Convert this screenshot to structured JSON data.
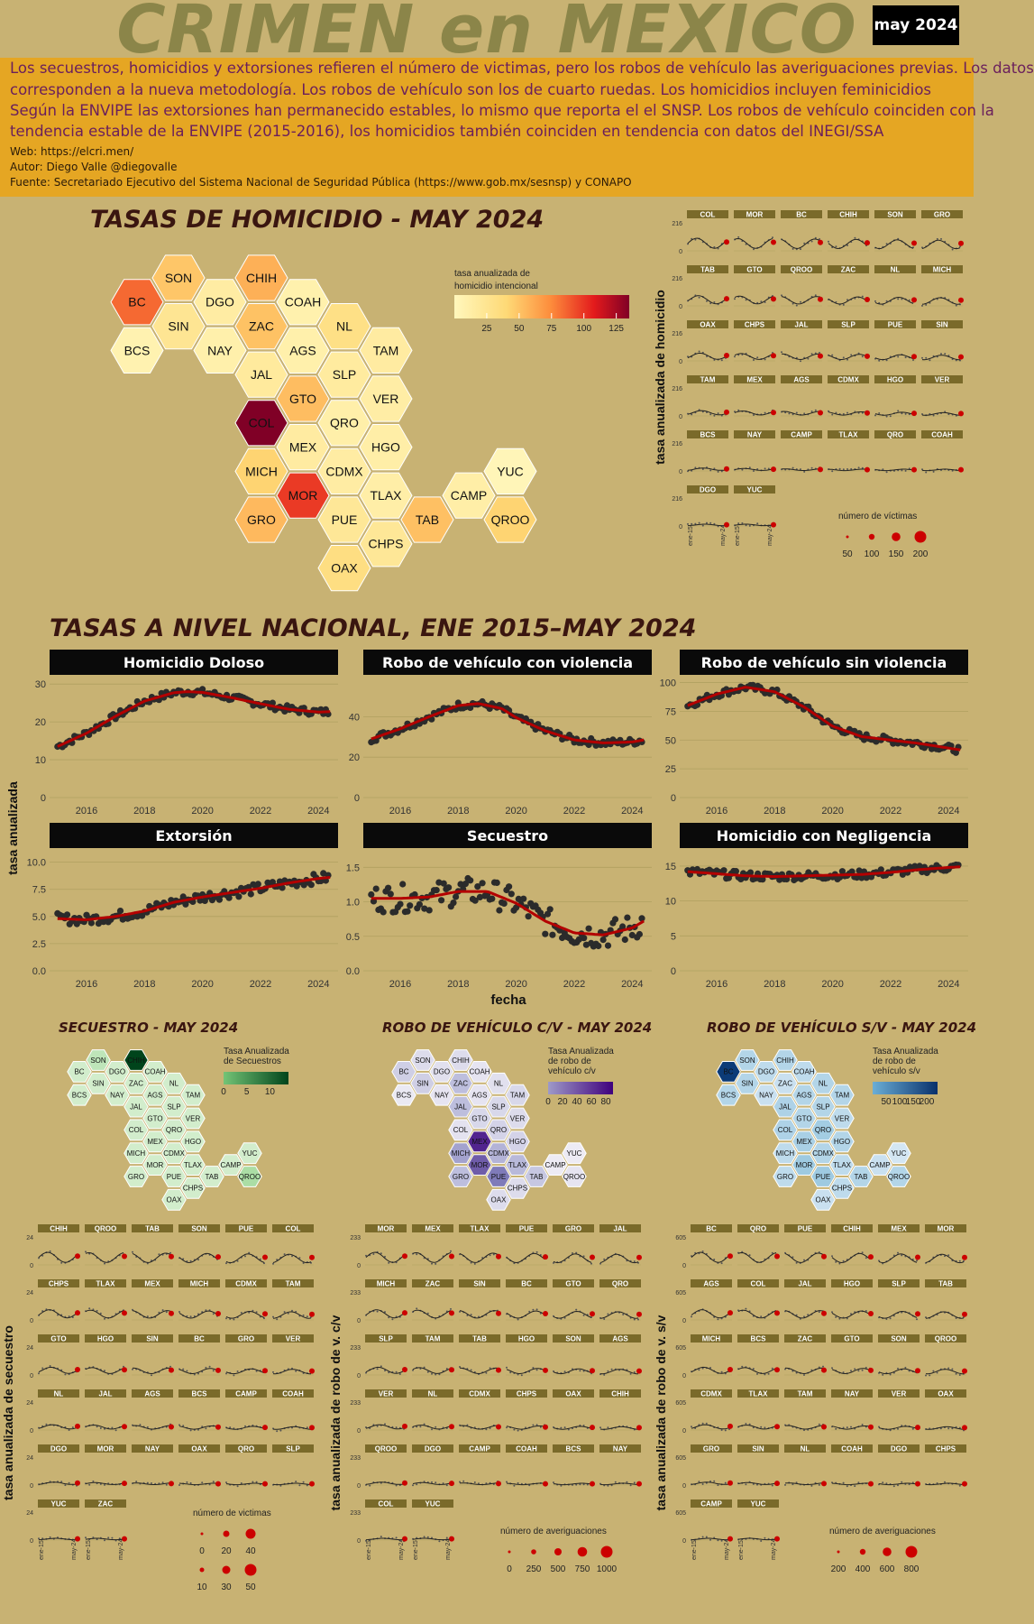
{
  "header": {
    "title": "CRIMEN en MEXICO",
    "date_badge": "may 2024"
  },
  "info": {
    "description_lines": [
      "Los secuestros, homicidios y extorsiones refieren el número de victimas, pero los robos de vehículo las averiguaciones previas. Los datos",
      "corresponden a la nueva metodología. Los robos de vehículo son los de cuarto ruedas. Los homicidios incluyen feminicidios",
      "Según la ENVIPE las extorsiones han permanecido estables, lo mismo que reporta el el SNSP. Los robos de vehículo coinciden con la",
      "tendencia estable de la ENVIPE (2015-2016), los homicidios también coinciden en tendencia con datos del INEGI/SSA"
    ],
    "web": "Web: https://elcri.men/",
    "author": "Autor: Diego Valle @diegovalle",
    "source": "Fuente: Secretariado Ejecutivo del Sistema Nacional de Seguridad Pública (https://www.gob.mx/sesnsp) y CONAPO"
  },
  "colors": {
    "background": "#C8B273",
    "info_band": "#E5A623",
    "trend_line": "#B30000",
    "dot": "#2b2b2b",
    "strip": "#7A6A2A",
    "panel_header": "#0A0A0A"
  },
  "icons": {
    "map": "hexagon-tile-map",
    "dots": "circle-markers"
  },
  "chart_data": [
    {
      "id": "homicide_map",
      "type": "heatmap",
      "subtype": "hex-tile-map",
      "title": "TASAS DE HOMICIDIO - MAY 2024",
      "legend_title": "tasa anualizada de homicidio intencional",
      "legend_ticks": [
        25,
        50,
        75,
        100,
        125
      ],
      "color_scale": [
        "#FFF7BC",
        "#FED976",
        "#FD8D3C",
        "#E31A1C",
        "#800026"
      ],
      "domain": [
        0,
        135
      ],
      "states": [
        {
          "code": "SON",
          "value": 42
        },
        {
          "code": "CHIH",
          "value": 52
        },
        {
          "code": "BC",
          "value": 78
        },
        {
          "code": "DGO",
          "value": 12
        },
        {
          "code": "COAH",
          "value": 7
        },
        {
          "code": "SIN",
          "value": 20
        },
        {
          "code": "ZAC",
          "value": 44
        },
        {
          "code": "NL",
          "value": 26
        },
        {
          "code": "BCS",
          "value": 6
        },
        {
          "code": "NAY",
          "value": 8
        },
        {
          "code": "AGS",
          "value": 8
        },
        {
          "code": "TAM",
          "value": 13
        },
        {
          "code": "JAL",
          "value": 15
        },
        {
          "code": "SLP",
          "value": 14
        },
        {
          "code": "GTO",
          "value": 46
        },
        {
          "code": "VER",
          "value": 11
        },
        {
          "code": "COL",
          "value": 135
        },
        {
          "code": "QRO",
          "value": 9
        },
        {
          "code": "MEX",
          "value": 13
        },
        {
          "code": "HGO",
          "value": 10
        },
        {
          "code": "MICH",
          "value": 36
        },
        {
          "code": "CDMX",
          "value": 12
        },
        {
          "code": "YUC",
          "value": 2
        },
        {
          "code": "MOR",
          "value": 92
        },
        {
          "code": "TLAX",
          "value": 10
        },
        {
          "code": "CAMP",
          "value": 10
        },
        {
          "code": "GRO",
          "value": 48
        },
        {
          "code": "PUE",
          "value": 18
        },
        {
          "code": "TAB",
          "value": 45
        },
        {
          "code": "QROO",
          "value": 36
        },
        {
          "code": "CHPS",
          "value": 18
        },
        {
          "code": "OAX",
          "value": 28
        }
      ]
    },
    {
      "id": "homicide_small_multiples",
      "type": "scatter",
      "subtype": "small-multiples",
      "ylabel": "tasa anualizada de homicidio",
      "ymax": 216,
      "states": [
        "COL",
        "MOR",
        "BC",
        "CHIH",
        "SON",
        "GRO",
        "TAB",
        "GTO",
        "QROO",
        "ZAC",
        "NL",
        "MICH",
        "OAX",
        "CHPS",
        "JAL",
        "SLP",
        "PUE",
        "SIN",
        "TAM",
        "MEX",
        "AGS",
        "CDMX",
        "HGO",
        "VER",
        "BCS",
        "NAY",
        "CAMP",
        "TLAX",
        "QRO",
        "COAH",
        "DGO",
        "YUC"
      ],
      "x_tick_labels": [
        "ene-15",
        "may-24"
      ],
      "legend_title": "número de víctimas",
      "legend_values": [
        50,
        100,
        150,
        200
      ]
    },
    {
      "id": "national",
      "type": "scatter",
      "title": "TASAS A NIVEL NACIONAL, ENE 2015–MAY 2024",
      "xlabel": "fecha",
      "ylabel": "tasa anualizada",
      "x_ticks": [
        2016,
        2018,
        2020,
        2022,
        2024
      ],
      "panels": [
        {
          "name": "Homicidio Doloso",
          "y_ticks": [
            0,
            10,
            20,
            30
          ],
          "ylim": [
            0,
            31
          ],
          "trend": [
            [
              2015.0,
              13.5
            ],
            [
              2016.0,
              17.0
            ],
            [
              2017.0,
              21.5
            ],
            [
              2018.0,
              25.5
            ],
            [
              2019.0,
              27.7
            ],
            [
              2019.5,
              28.0
            ],
            [
              2020.0,
              27.8
            ],
            [
              2021.0,
              26.4
            ],
            [
              2022.0,
              24.8
            ],
            [
              2023.0,
              23.3
            ],
            [
              2024.0,
              22.6
            ],
            [
              2024.4,
              22.7
            ]
          ]
        },
        {
          "name": "Robo de vehículo con violencia",
          "y_ticks": [
            0,
            20,
            40
          ],
          "ylim": [
            0,
            58
          ],
          "trend": [
            [
              2015.0,
              29
            ],
            [
              2016.0,
              34
            ],
            [
              2017.0,
              40
            ],
            [
              2018.0,
              45.5
            ],
            [
              2018.7,
              46.5
            ],
            [
              2019.5,
              44
            ],
            [
              2020.0,
              39.5
            ],
            [
              2021.0,
              33
            ],
            [
              2022.0,
              28.5
            ],
            [
              2023.0,
              27
            ],
            [
              2024.0,
              27.5
            ],
            [
              2024.4,
              28.5
            ]
          ]
        },
        {
          "name": "Robo de vehículo sin violencia",
          "y_ticks": [
            0,
            25,
            50,
            75,
            100
          ],
          "ylim": [
            0,
            102
          ],
          "trend": [
            [
              2015.0,
              80
            ],
            [
              2016.0,
              90
            ],
            [
              2017.0,
              96
            ],
            [
              2018.0,
              92
            ],
            [
              2019.0,
              79
            ],
            [
              2020.0,
              62
            ],
            [
              2021.0,
              53
            ],
            [
              2022.0,
              50
            ],
            [
              2023.0,
              47
            ],
            [
              2024.0,
              43
            ],
            [
              2024.4,
              41.5
            ]
          ]
        },
        {
          "name": "Extorsión",
          "y_ticks": [
            0.0,
            2.5,
            5.0,
            7.5,
            10.0
          ],
          "ylim": [
            0,
            10.8
          ],
          "trend": [
            [
              2015.0,
              4.8
            ],
            [
              2016.0,
              4.7
            ],
            [
              2017.0,
              5.0
            ],
            [
              2018.0,
              5.5
            ],
            [
              2019.0,
              6.3
            ],
            [
              2020.0,
              6.8
            ],
            [
              2021.0,
              7.2
            ],
            [
              2022.0,
              7.6
            ],
            [
              2023.0,
              8.1
            ],
            [
              2024.0,
              8.5
            ],
            [
              2024.4,
              8.6
            ]
          ]
        },
        {
          "name": "Secuestro",
          "y_ticks": [
            0.0,
            0.5,
            1.0,
            1.5
          ],
          "ylim": [
            0,
            1.7
          ],
          "trend": [
            [
              2015.0,
              1.05
            ],
            [
              2016.0,
              1.05
            ],
            [
              2017.0,
              1.07
            ],
            [
              2018.0,
              1.15
            ],
            [
              2019.0,
              1.15
            ],
            [
              2020.0,
              0.98
            ],
            [
              2021.0,
              0.72
            ],
            [
              2022.0,
              0.55
            ],
            [
              2023.0,
              0.52
            ],
            [
              2024.0,
              0.62
            ],
            [
              2024.4,
              0.72
            ]
          ]
        },
        {
          "name": "Homicidio con Negligencia",
          "y_ticks": [
            0,
            5,
            10,
            15
          ],
          "ylim": [
            0,
            16.8
          ],
          "trend": [
            [
              2015.0,
              14.2
            ],
            [
              2016.0,
              13.9
            ],
            [
              2017.0,
              13.6
            ],
            [
              2018.0,
              13.5
            ],
            [
              2019.0,
              13.6
            ],
            [
              2020.0,
              13.7
            ],
            [
              2021.0,
              13.8
            ],
            [
              2022.0,
              14.1
            ],
            [
              2023.0,
              14.5
            ],
            [
              2024.0,
              14.8
            ],
            [
              2024.4,
              14.9
            ]
          ]
        }
      ]
    },
    {
      "id": "kidnap_map",
      "type": "heatmap",
      "subtype": "hex-tile-map",
      "title": "SECUESTRO - MAY 2024",
      "legend_title": "Tasa Anualizada de Secuestros",
      "legend_ticks": [
        0,
        5,
        10
      ],
      "color_scale": [
        "#E5F5E0",
        "#A1D99B",
        "#41AB5D",
        "#006D2C",
        "#00441B"
      ],
      "domain": [
        0,
        14
      ],
      "values": {
        "CHIH": 14,
        "SON": 2,
        "BC": 1,
        "DGO": 1,
        "COAH": 1,
        "SIN": 1,
        "ZAC": 1,
        "NL": 1,
        "BCS": 1,
        "NAY": 1,
        "AGS": 1,
        "TAM": 1,
        "JAL": 1,
        "SLP": 1,
        "GTO": 1,
        "VER": 1,
        "COL": 1,
        "QRO": 1,
        "MEX": 1,
        "HGO": 1,
        "MICH": 1,
        "CDMX": 1,
        "YUC": 1,
        "MOR": 1,
        "TLAX": 1,
        "CAMP": 1,
        "GRO": 1,
        "PUE": 1,
        "TAB": 1,
        "QROO": 3,
        "CHPS": 1,
        "OAX": 1
      }
    },
    {
      "id": "robbery_cv_map",
      "type": "heatmap",
      "subtype": "hex-tile-map",
      "title": "ROBO DE VEHÍCULO C/V - MAY 2024",
      "legend_title": "Tasa Anualizada de robo de vehículo c/v",
      "legend_ticks": [
        0,
        20,
        40,
        60,
        80
      ],
      "color_scale": [
        "#EFEDF5",
        "#BCBDDC",
        "#807DBA",
        "#6A51A3",
        "#3F007D"
      ],
      "domain": [
        0,
        90
      ],
      "values": {
        "SON": 8,
        "CHIH": 8,
        "BC": 14,
        "DGO": 6,
        "COAH": 4,
        "SIN": 14,
        "ZAC": 22,
        "NL": 6,
        "BCS": 2,
        "NAY": 4,
        "AGS": 4,
        "TAM": 10,
        "JAL": 22,
        "SLP": 10,
        "GTO": 10,
        "VER": 8,
        "COL": 5,
        "QRO": 12,
        "MEX": 80,
        "HGO": 12,
        "MICH": 32,
        "CDMX": 26,
        "YUC": 1,
        "MOR": 62,
        "TLAX": 24,
        "CAMP": 1,
        "GRO": 22,
        "PUE": 46,
        "TAB": 18,
        "QROO": 4,
        "CHPS": 8,
        "OAX": 8
      }
    },
    {
      "id": "robbery_sv_map",
      "type": "heatmap",
      "subtype": "hex-tile-map",
      "title": "ROBO DE VEHÍCULO S/V - MAY 2024",
      "legend_title": "Tasa Anualizada de robo de vehículo s/v",
      "legend_ticks": [
        50,
        100,
        150,
        200
      ],
      "color_scale": [
        "#DEEBF7",
        "#9ECAE1",
        "#6BAED6",
        "#2171B5",
        "#08306B"
      ],
      "domain": [
        0,
        240
      ],
      "values": {
        "SON": 40,
        "CHIH": 40,
        "BC": 230,
        "DGO": 30,
        "COAH": 30,
        "SIN": 40,
        "ZAC": 20,
        "NL": 40,
        "BCS": 40,
        "NAY": 20,
        "AGS": 40,
        "TAM": 40,
        "JAL": 45,
        "SLP": 40,
        "GTO": 40,
        "VER": 30,
        "COL": 45,
        "QRO": 55,
        "MEX": 50,
        "HGO": 40,
        "MICH": 30,
        "CDMX": 40,
        "YUC": 10,
        "MOR": 60,
        "TLAX": 30,
        "CAMP": 20,
        "GRO": 30,
        "PUE": 60,
        "TAB": 40,
        "QROO": 40,
        "CHPS": 30,
        "OAX": 20
      }
    },
    {
      "id": "kidnap_small_multiples",
      "type": "scatter",
      "subtype": "small-multiples",
      "ylabel": "tasa anualizada de secuestro",
      "ymax": 24,
      "states": [
        "CHIH",
        "QROO",
        "TAB",
        "SON",
        "PUE",
        "COL",
        "CHPS",
        "TLAX",
        "MEX",
        "MICH",
        "CDMX",
        "TAM",
        "GTO",
        "HGO",
        "SIN",
        "BC",
        "GRO",
        "VER",
        "NL",
        "JAL",
        "AGS",
        "BCS",
        "CAMP",
        "COAH",
        "DGO",
        "MOR",
        "NAY",
        "OAX",
        "QRO",
        "SLP",
        "YUC",
        "ZAC"
      ],
      "x_tick_labels": [
        "ene-15",
        "may-24"
      ],
      "legend_title": "número de victimas",
      "legend_values": [
        0,
        10,
        20,
        30,
        40,
        50
      ]
    },
    {
      "id": "robbery_cv_small_multiples",
      "type": "scatter",
      "subtype": "small-multiples",
      "ylabel": "tasa anualizada de robo de v. c/v",
      "ymax": 233,
      "states": [
        "MOR",
        "MEX",
        "TLAX",
        "PUE",
        "GRO",
        "JAL",
        "MICH",
        "ZAC",
        "SIN",
        "BC",
        "GTO",
        "QRO",
        "SLP",
        "TAM",
        "TAB",
        "HGO",
        "SON",
        "AGS",
        "VER",
        "NL",
        "CDMX",
        "CHPS",
        "OAX",
        "CHIH",
        "QROO",
        "DGO",
        "CAMP",
        "COAH",
        "BCS",
        "NAY",
        "COL",
        "YUC"
      ],
      "x_tick_labels": [
        "ene-15",
        "may-24"
      ],
      "legend_title": "número de averiguaciones",
      "legend_values": [
        0,
        250,
        500,
        750,
        1000
      ]
    },
    {
      "id": "robbery_sv_small_multiples",
      "type": "scatter",
      "subtype": "small-multiples",
      "ylabel": "tasa anualizada de robo de v. s/v",
      "ymax": 605,
      "states": [
        "BC",
        "QRO",
        "PUE",
        "CHIH",
        "MEX",
        "MOR",
        "AGS",
        "COL",
        "JAL",
        "HGO",
        "SLP",
        "TAB",
        "MICH",
        "BCS",
        "ZAC",
        "GTO",
        "SON",
        "QROO",
        "CDMX",
        "TLAX",
        "TAM",
        "NAY",
        "VER",
        "OAX",
        "GRO",
        "SIN",
        "NL",
        "COAH",
        "DGO",
        "CHPS",
        "CAMP",
        "YUC"
      ],
      "x_tick_labels": [
        "ene-15",
        "may-24"
      ],
      "legend_title": "número de averiguaciones",
      "legend_values": [
        200,
        400,
        600,
        800
      ]
    }
  ]
}
